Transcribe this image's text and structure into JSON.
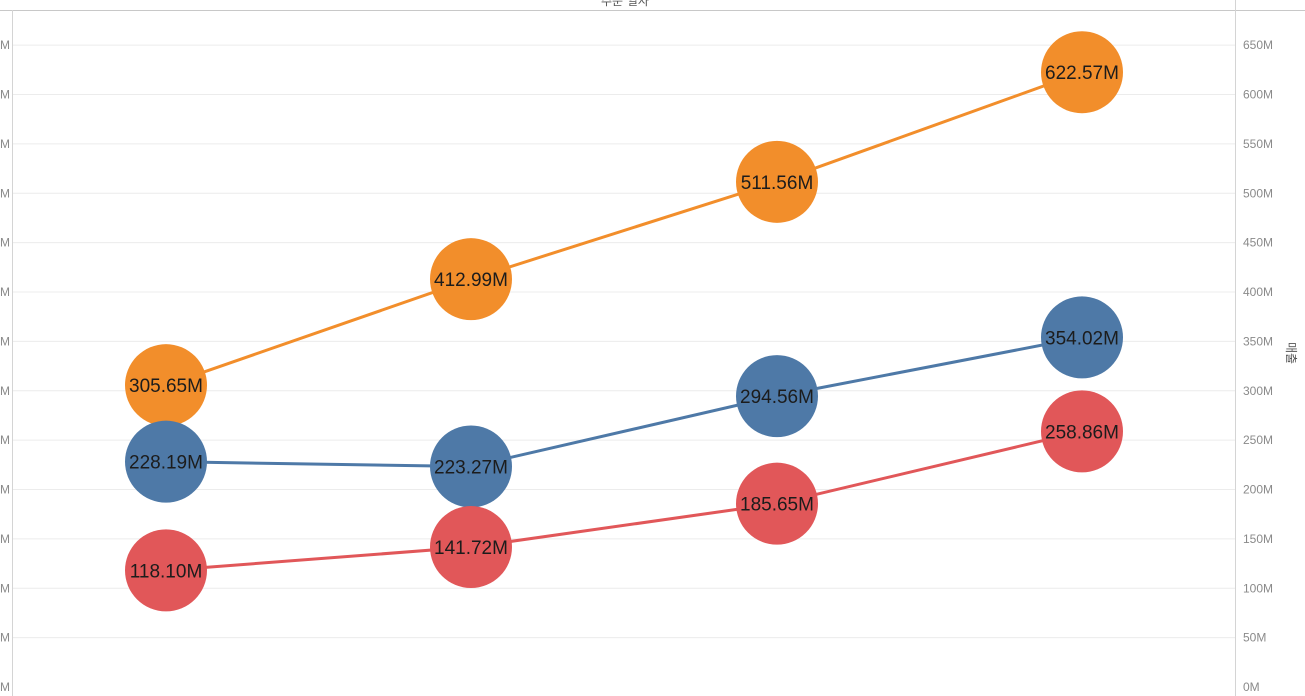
{
  "chart_data": {
    "type": "line",
    "title": "",
    "top_axis_label": "주문 일자",
    "xlabel": "",
    "ylabel": "매출",
    "ylim": [
      0,
      670
    ],
    "y_ticks": [
      "0M",
      "50M",
      "100M",
      "150M",
      "200M",
      "250M",
      "300M",
      "350M",
      "400M",
      "450M",
      "500M",
      "550M",
      "600M",
      "650M"
    ],
    "y_tick_values": [
      0,
      50,
      100,
      150,
      200,
      250,
      300,
      350,
      400,
      450,
      500,
      550,
      600,
      650
    ],
    "left_axis_tick_suffix": "M",
    "grid": true,
    "x_count": 4,
    "series": [
      {
        "color": "#F28E2B",
        "values": [
          305.65,
          412.99,
          511.56,
          622.57
        ],
        "labels": [
          "305.65M",
          "412.99M",
          "511.56M",
          "622.57M"
        ]
      },
      {
        "color": "#4E79A7",
        "values": [
          228.19,
          223.27,
          294.56,
          354.02
        ],
        "labels": [
          "228.19M",
          "223.27M",
          "294.56M",
          "354.02M"
        ]
      },
      {
        "color": "#E15759",
        "values": [
          118.1,
          141.72,
          185.65,
          258.86
        ],
        "labels": [
          "118.10M",
          "141.72M",
          "185.65M",
          "258.86M"
        ]
      }
    ]
  }
}
